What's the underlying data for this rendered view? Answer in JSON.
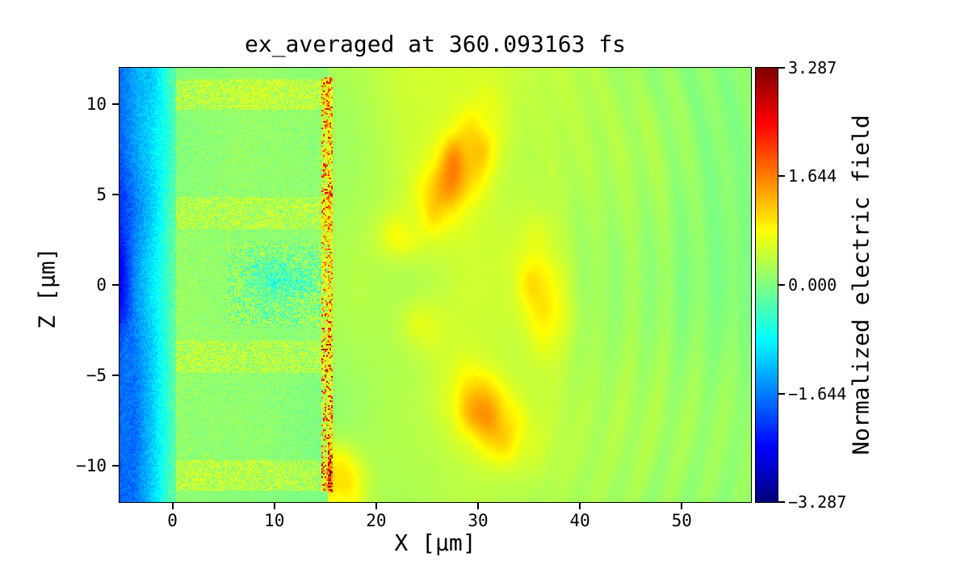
{
  "figure": {
    "background": "#ffffff"
  },
  "chart_data": {
    "type": "heatmap",
    "title": "ex_averaged at 360.093163 fs",
    "xlabel": "X [μm]",
    "ylabel": "Z [μm]",
    "xlim": [
      -5.2,
      56.8
    ],
    "ylim": [
      -12,
      12
    ],
    "xticks": [
      0,
      10,
      20,
      30,
      40,
      50
    ],
    "xtick_labels": [
      "0",
      "10",
      "20",
      "30",
      "40",
      "50"
    ],
    "yticks": [
      10,
      5,
      0,
      -5,
      -10
    ],
    "ytick_labels": [
      "10",
      "5",
      "0",
      "−5",
      "−10"
    ],
    "grid": false,
    "colormap": "jet",
    "vmin": -3.287,
    "vmax": 3.287,
    "colorbar_label": "Normalized electric field",
    "colorbar_ticks": [
      3.287,
      1.644,
      0.0,
      -1.644,
      -3.287
    ],
    "colorbar_tick_labels": [
      "3.287",
      "1.644",
      "0.000",
      "−1.644",
      "−3.287"
    ],
    "field_model": {
      "description": "Laser-plasma averaged Ex field snapshot: dark-blue negative ramp for x<0, finely speckled green plasma slab 0<x<15.3 um with yellow speckle stripe bands near z=+-4 and z=+-10.5 and a turbulent cyan pocket near (11,0), a strong red-speckled sheath line at x~15.2, and a smooth yellow downstream region with orange hot spots and faint curved wavefronts toward x>45.",
      "background_level": 0.06,
      "left_ramp_min": -2.3,
      "plasma_x": [
        0.4,
        15.5
      ],
      "sheath_x": 15.2,
      "stripe_bands_z": [
        [
          3.1,
          4.9
        ],
        [
          9.7,
          11.4
        ]
      ],
      "turbulent_pocket": {
        "x": 11,
        "z": 0,
        "amp": -0.9
      },
      "downstream_band": {
        "center_x": 30,
        "sigma_x": 16,
        "amp": 0.45
      },
      "hot_spots": [
        {
          "x": 28.0,
          "z": 6.3,
          "sx": 2.9,
          "sz": 1.5,
          "amp": 1.05,
          "rot": 0.7
        },
        {
          "x": 36.4,
          "z": -0.3,
          "sx": 1.7,
          "sz": 2.3,
          "amp": 0.8,
          "rot": 0.3
        },
        {
          "x": 30.8,
          "z": -7.2,
          "sx": 2.7,
          "sz": 1.5,
          "amp": 0.95,
          "rot": -0.45
        },
        {
          "x": 16.4,
          "z": -10.8,
          "sx": 1.6,
          "sz": 1.3,
          "amp": 1.15,
          "rot": 0
        },
        {
          "x": 22.0,
          "z": 2.8,
          "sx": 1.4,
          "sz": 0.9,
          "amp": 0.35,
          "rot": 0
        },
        {
          "x": 24.5,
          "z": -2.2,
          "sx": 1.6,
          "sz": 1.0,
          "amp": 0.3,
          "rot": 0
        }
      ]
    }
  }
}
